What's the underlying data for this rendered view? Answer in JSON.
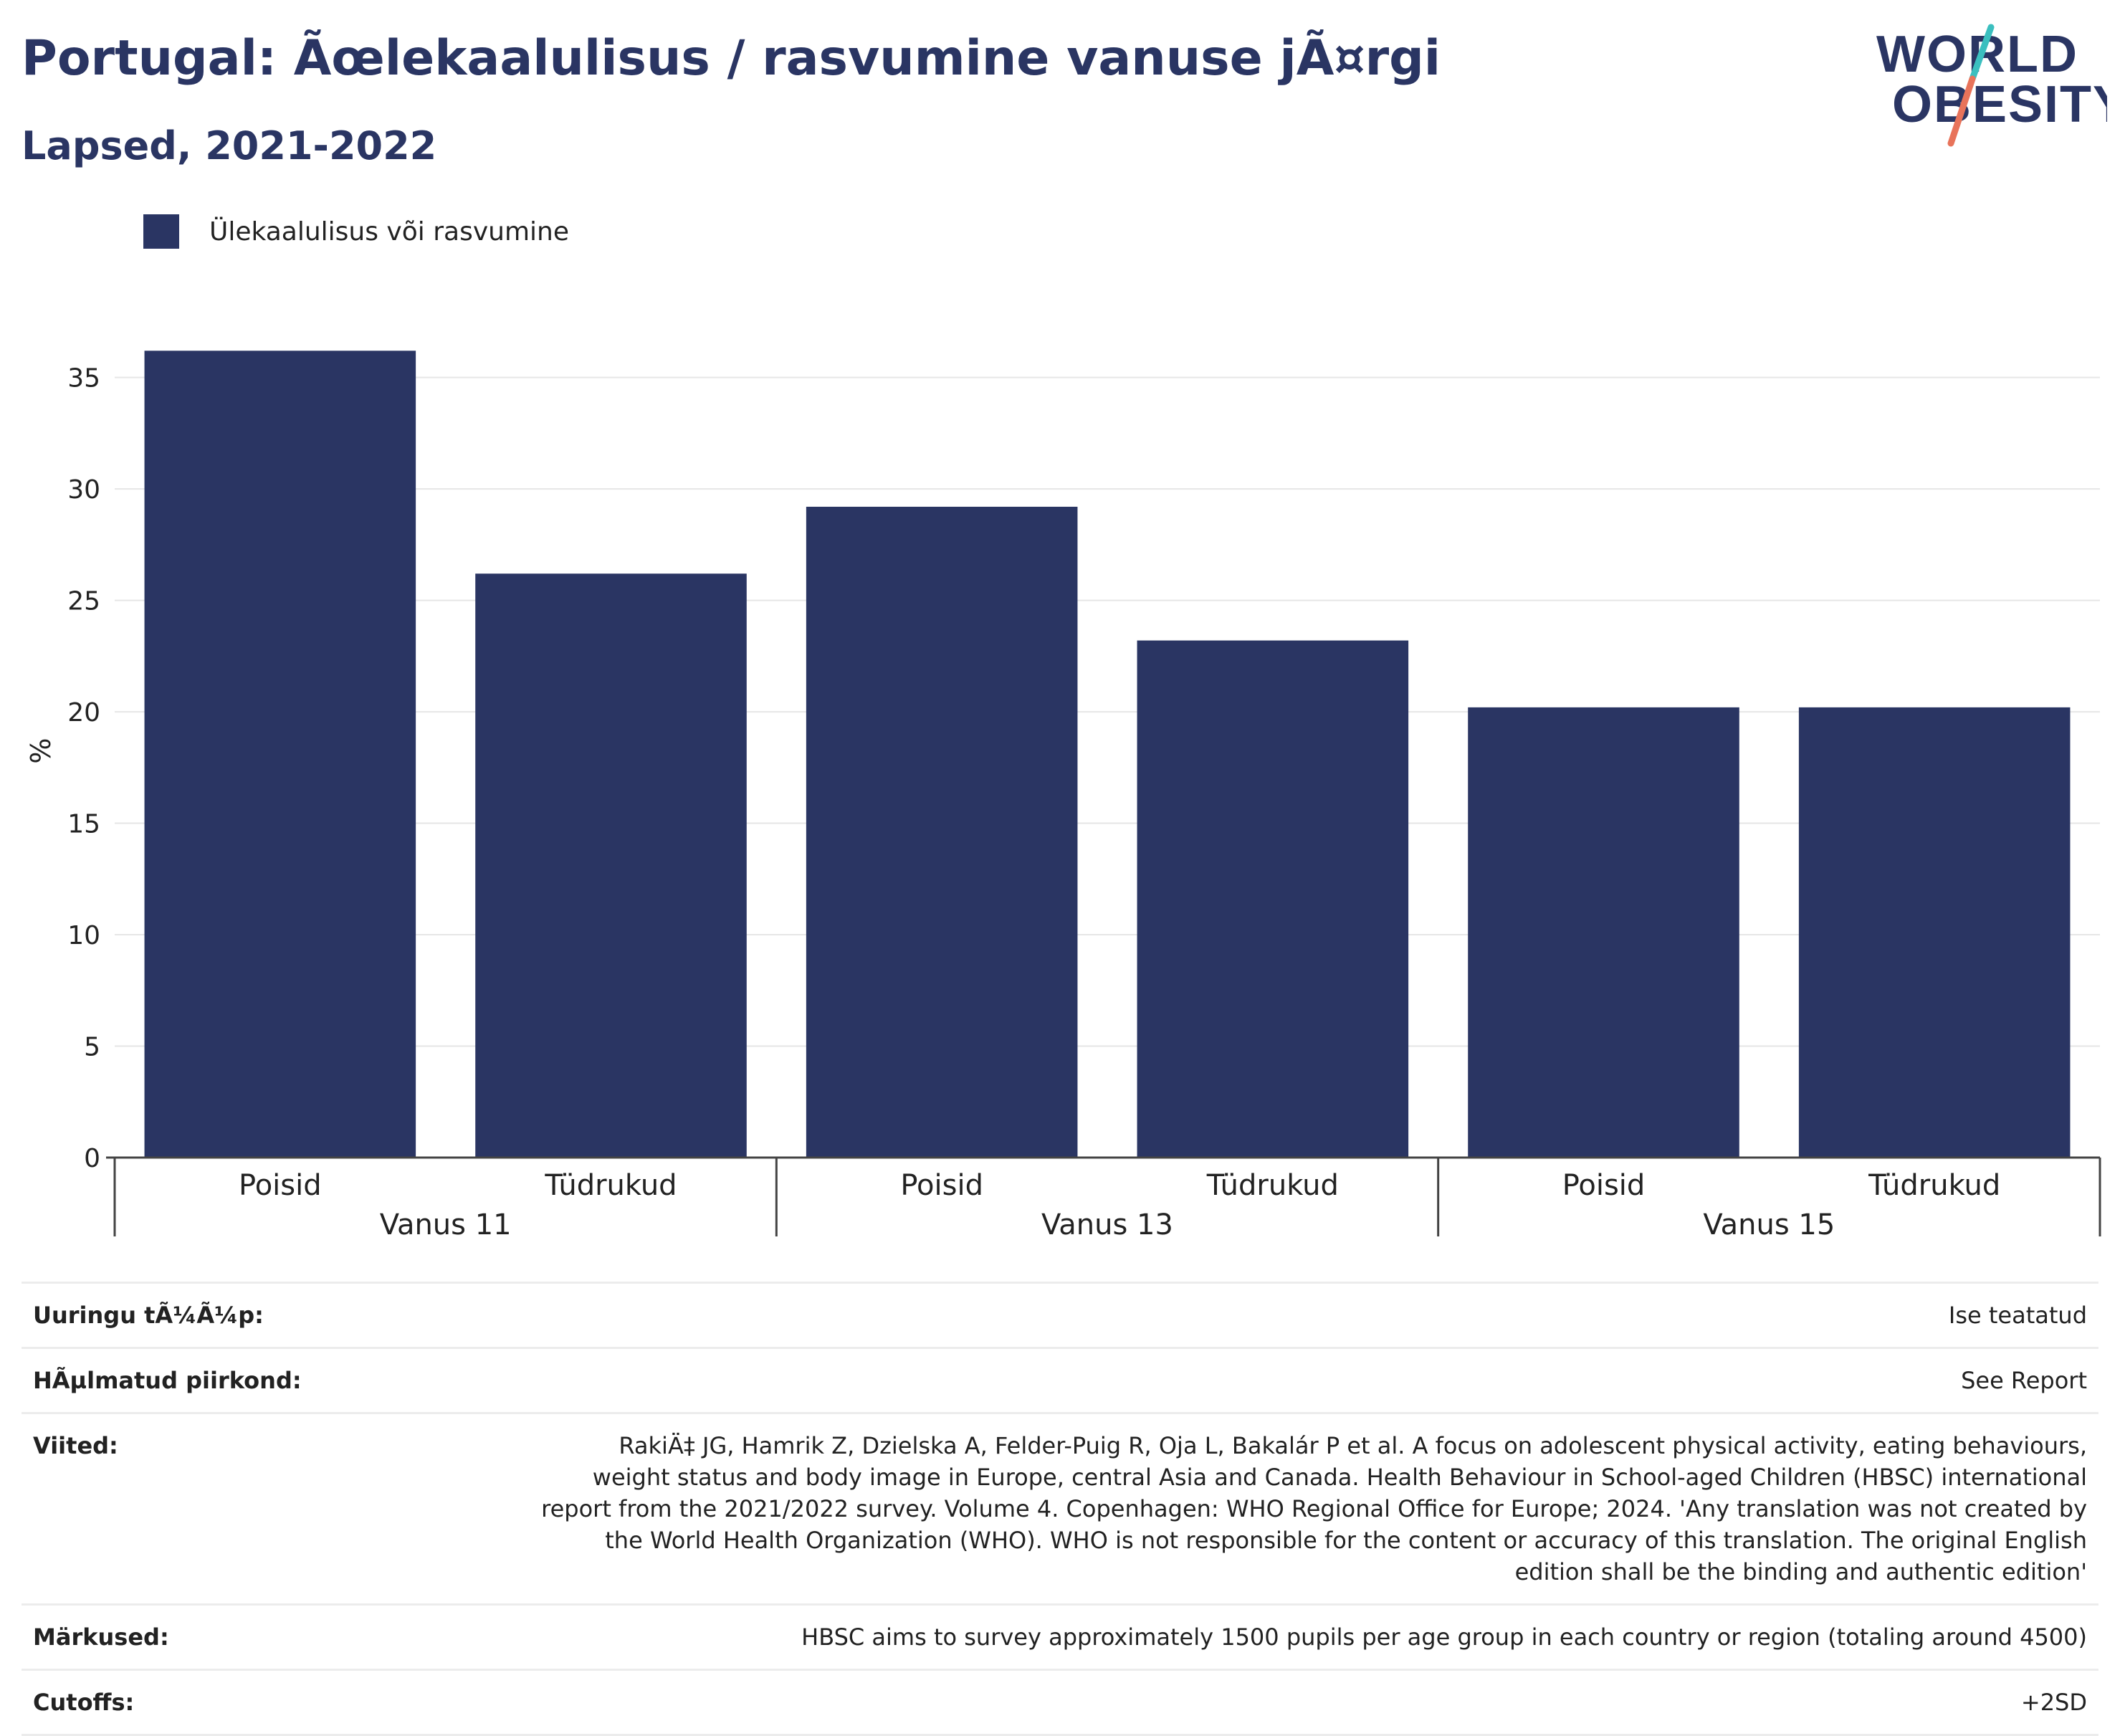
{
  "header": {
    "title": "Portugal: Ãœlekaalulisus / rasvumine vanuse jÃ¤rgi",
    "subtitle": "Lapsed, 2021-2022"
  },
  "logo": {
    "line1": "WORLD",
    "line2": "OBESITY"
  },
  "colors": {
    "bar": "#2a3563",
    "text": "#2a3563",
    "logo_teal": "#3bbfbf",
    "logo_coral": "#e8735a"
  },
  "chart_data": {
    "type": "bar",
    "ylabel": "%",
    "ylim": [
      0,
      36.5
    ],
    "yticks": [
      0,
      5,
      10,
      15,
      20,
      25,
      30,
      35
    ],
    "grid": true,
    "legend_position": "top-left",
    "groups": [
      "Vanus 11",
      "Vanus 13",
      "Vanus 15"
    ],
    "categories": [
      "Poisid",
      "Tüdrukud"
    ],
    "series": [
      {
        "name": "Ülekaalulisus või rasvumine",
        "values": [
          [
            36.2,
            26.2
          ],
          [
            29.2,
            23.2
          ],
          [
            20.2,
            20.2
          ]
        ]
      }
    ]
  },
  "info": [
    {
      "key": "Uuringu tÃ¼Ã¼p:",
      "value": "Ise teatatud"
    },
    {
      "key": "HÃµlmatud piirkond:",
      "value": "See Report"
    },
    {
      "key": "Viited:",
      "value": "RakiÄ‡ JG, Hamrik Z, Dzielska A, Felder-Puig R, Oja L, Bakalár P et al. A focus on adolescent physical activity, eating behaviours, weight status and body image in Europe, central Asia and Canada. Health Behaviour in School-aged Children (HBSC) international report from the 2021/2022 survey. Volume 4. Copenhagen: WHO Regional Office for Europe; 2024. 'Any translation was not created by the World Health Organization (WHO). WHO is not responsible for the content or accuracy of this translation. The original English edition shall be the binding and authentic edition'"
    },
    {
      "key": "Märkused:",
      "value": "HBSC aims to survey approximately 1500 pupils per age group in each country or region (totaling around 4500)"
    },
    {
      "key": "Cutoffs:",
      "value": "+2SD"
    }
  ]
}
